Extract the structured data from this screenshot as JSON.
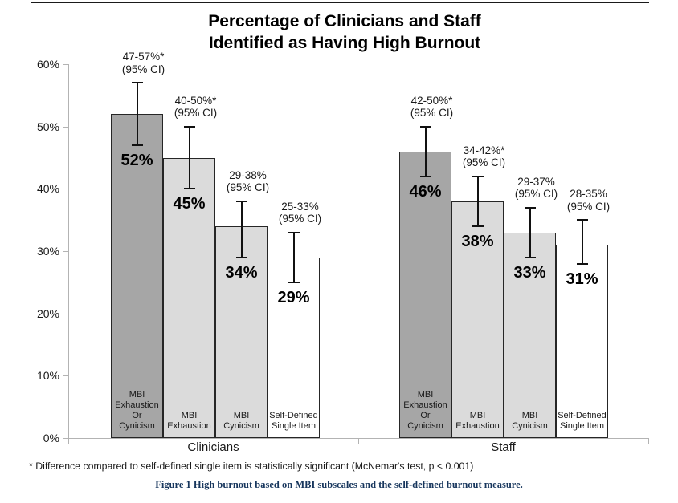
{
  "page": {
    "title_line1": "Percentage of Clinicians and Staff",
    "title_line2": "Identified as Having High Burnout",
    "footnote": "* Difference compared to self-defined single item is statistically significant (McNemar's test, p < 0.001)",
    "caption": "Figure 1 High burnout based on MBI subscales and the self-defined burnout measure."
  },
  "colors": {
    "dark_bar": "#a6a6a6",
    "light_bar": "#dbdbdb",
    "white_bar": "#ffffff",
    "bar_border": "#262626",
    "axis": "#b3b3b3",
    "error_bar": "#111111",
    "caption_blue": "#17365d",
    "text": "#1a1a1a"
  },
  "chart_data": {
    "type": "bar",
    "title": "Percentage of Clinicians and Staff Identified as Having High Burnout",
    "xlabel": "",
    "ylabel": "",
    "ylim": [
      0,
      60
    ],
    "yticks": [
      0,
      10,
      20,
      30,
      40,
      50,
      60
    ],
    "ytick_labels": [
      "0%",
      "10%",
      "20%",
      "30%",
      "40%",
      "50%",
      "60%"
    ],
    "grid": false,
    "legend": "none",
    "groups": [
      {
        "label": "Clinicians",
        "bars": [
          {
            "category": "MBI Exhaustion Or Cynicism",
            "label_lines": [
              "MBI",
              "Exhaustion",
              "Or",
              "Cynicism"
            ],
            "value": 52,
            "value_label": "52%",
            "ci_low": 47,
            "ci_high": 57,
            "ci_label": "47-57%*",
            "ci_note": "(95% CI)",
            "shade": "dark"
          },
          {
            "category": "MBI Exhaustion",
            "label_lines": [
              "MBI",
              "Exhaustion"
            ],
            "value": 45,
            "value_label": "45%",
            "ci_low": 40,
            "ci_high": 50,
            "ci_label": "40-50%*",
            "ci_note": "(95% CI)",
            "shade": "light"
          },
          {
            "category": "MBI Cynicism",
            "label_lines": [
              "MBI",
              "Cynicism"
            ],
            "value": 34,
            "value_label": "34%",
            "ci_low": 29,
            "ci_high": 38,
            "ci_label": "29-38%",
            "ci_note": "(95% CI)",
            "shade": "light"
          },
          {
            "category": "Self-Defined Single Item",
            "label_lines": [
              "Self-Defined",
              "Single Item"
            ],
            "value": 29,
            "value_label": "29%",
            "ci_low": 25,
            "ci_high": 33,
            "ci_label": "25-33%",
            "ci_note": "(95% CI)",
            "shade": "white"
          }
        ]
      },
      {
        "label": "Staff",
        "bars": [
          {
            "category": "MBI Exhaustion Or Cynicism",
            "label_lines": [
              "MBI",
              "Exhaustion",
              "Or",
              "Cynicism"
            ],
            "value": 46,
            "value_label": "46%",
            "ci_low": 42,
            "ci_high": 50,
            "ci_label": "42-50%*",
            "ci_note": "(95% CI)",
            "shade": "dark"
          },
          {
            "category": "MBI Exhaustion",
            "label_lines": [
              "MBI",
              "Exhaustion"
            ],
            "value": 38,
            "value_label": "38%",
            "ci_low": 34,
            "ci_high": 42,
            "ci_label": "34-42%*",
            "ci_note": "(95% CI)",
            "shade": "light"
          },
          {
            "category": "MBI Cynicism",
            "label_lines": [
              "MBI",
              "Cynicism"
            ],
            "value": 33,
            "value_label": "33%",
            "ci_low": 29,
            "ci_high": 37,
            "ci_label": "29-37%",
            "ci_note": "(95% CI)",
            "shade": "light"
          },
          {
            "category": "Self-Defined Single Item",
            "label_lines": [
              "Self-Defined",
              "Single Item"
            ],
            "value": 31,
            "value_label": "31%",
            "ci_low": 28,
            "ci_high": 35,
            "ci_label": "28-35%",
            "ci_note": "(95% CI)",
            "shade": "white"
          }
        ]
      }
    ]
  }
}
